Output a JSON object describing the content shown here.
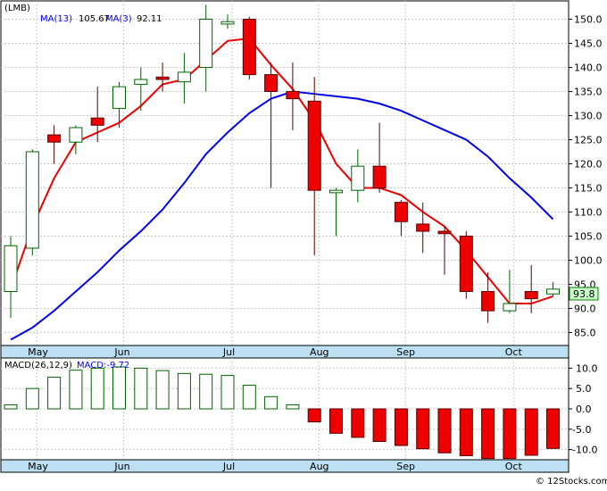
{
  "chart_data": [
    {
      "type": "candlestick",
      "symbol": "(LMB)",
      "legend": {
        "ma13_label": "MA(13)",
        "ma13_value": "105.67",
        "ma3_label": "MA(3)",
        "ma3_value": "92.11"
      },
      "last_price_label": "93.8",
      "y_ticks": [
        85.0,
        90.0,
        95.0,
        100.0,
        105.0,
        110.0,
        115.0,
        120.0,
        125.0,
        130.0,
        135.0,
        140.0,
        145.0,
        150.0
      ],
      "ylim": [
        82.3,
        153.8
      ],
      "months": [
        {
          "label": "May",
          "index": 1.2
        },
        {
          "label": "Jun",
          "index": 5.2
        },
        {
          "label": "Jul",
          "index": 10.2
        },
        {
          "label": "Aug",
          "index": 14.2
        },
        {
          "label": "Sep",
          "index": 18.2
        },
        {
          "label": "Oct",
          "index": 23.2
        }
      ],
      "candles": [
        {
          "open": 93.5,
          "high": 105.0,
          "low": 88.0,
          "close": 103.0
        },
        {
          "open": 102.5,
          "high": 123.0,
          "low": 101.0,
          "close": 122.5
        },
        {
          "open": 126.0,
          "high": 128.0,
          "low": 120.0,
          "close": 124.5
        },
        {
          "open": 124.5,
          "high": 128.0,
          "low": 122.0,
          "close": 127.5
        },
        {
          "open": 129.5,
          "high": 136.0,
          "low": 124.5,
          "close": 128.0
        },
        {
          "open": 131.5,
          "high": 137.0,
          "low": 127.5,
          "close": 136.0
        },
        {
          "open": 136.5,
          "high": 140.0,
          "low": 131.0,
          "close": 137.5
        },
        {
          "open": 138.0,
          "high": 141.0,
          "low": 135.0,
          "close": 137.5
        },
        {
          "open": 137.0,
          "high": 143.0,
          "low": 132.5,
          "close": 139.0
        },
        {
          "open": 140.0,
          "high": 153.0,
          "low": 135.0,
          "close": 150.0
        },
        {
          "open": 149.0,
          "high": 151.0,
          "low": 148.0,
          "close": 149.5
        },
        {
          "open": 150.0,
          "high": 150.5,
          "low": 137.5,
          "close": 138.5
        },
        {
          "open": 138.5,
          "high": 141.0,
          "low": 115.0,
          "close": 135.0
        },
        {
          "open": 135.0,
          "high": 141.0,
          "low": 127.0,
          "close": 133.5
        },
        {
          "open": 133.0,
          "high": 138.0,
          "low": 101.0,
          "close": 114.5
        },
        {
          "open": 114.0,
          "high": 115.0,
          "low": 105.0,
          "close": 114.5
        },
        {
          "open": 114.5,
          "high": 123.0,
          "low": 112.0,
          "close": 119.5
        },
        {
          "open": 119.5,
          "high": 128.5,
          "low": 114.0,
          "close": 115.0
        },
        {
          "open": 112.0,
          "high": 112.5,
          "low": 105.0,
          "close": 108.0
        },
        {
          "open": 107.5,
          "high": 112.0,
          "low": 101.5,
          "close": 106.0
        },
        {
          "open": 106.0,
          "high": 107.0,
          "low": 97.0,
          "close": 105.5
        },
        {
          "open": 105.0,
          "high": 106.0,
          "low": 92.0,
          "close": 93.5
        },
        {
          "open": 93.5,
          "high": 97.5,
          "low": 87.0,
          "close": 89.5
        },
        {
          "open": 89.5,
          "high": 98.0,
          "low": 89.0,
          "close": 91.0
        },
        {
          "open": 93.5,
          "high": 99.0,
          "low": 89.0,
          "close": 92.0
        },
        {
          "open": 93.0,
          "high": 95.5,
          "low": 92.5,
          "close": 94.0
        }
      ],
      "ma13": [
        83.5,
        84.8,
        86.5,
        89.0,
        91.8,
        94.8,
        97.6,
        100.6,
        103.3,
        106.4,
        109.7,
        113.1,
        116.5,
        119.8,
        122.2,
        124.5,
        126.5,
        128.4,
        129.9,
        131.3,
        132.5,
        133.2,
        133.9,
        134.3,
        134.5,
        134.8,
        134.5,
        134.0,
        133.5,
        132.8,
        132.0,
        131.0,
        129.8,
        128.2,
        126.5,
        124.5,
        121.8,
        118.8,
        115.5,
        112.5,
        110.0,
        107.8,
        105.67
      ],
      "ma13_x": [
        0,
        1,
        2,
        3,
        4,
        5,
        6,
        7,
        8,
        9,
        10,
        11,
        12,
        13,
        14,
        15,
        16,
        17,
        18,
        19,
        20,
        21,
        22,
        23,
        24,
        25
      ],
      "ma13_series": [
        83.5,
        86.0,
        89.5,
        93.5,
        97.5,
        102.0,
        106.0,
        110.5,
        116.0,
        122.0,
        126.5,
        130.5,
        133.5,
        135.0,
        134.5,
        134.0,
        133.5,
        132.5,
        131.0,
        129.0,
        127.0,
        125.0,
        121.5,
        117.0,
        113.0,
        108.5
      ],
      "ma3_series": [
        94.0,
        107.0,
        117.0,
        124.5,
        126.5,
        128.5,
        132.0,
        136.5,
        137.5,
        141.5,
        145.5,
        146.0,
        140.5,
        135.5,
        129.0,
        120.0,
        115.0,
        115.0,
        113.5,
        110.0,
        107.0,
        102.0,
        96.5,
        91.0,
        91.0,
        92.5
      ],
      "macd": {
        "label": "MACD(26,12,9)",
        "value_label": "MACD:-9.72",
        "y_ticks": [
          10.0,
          5.0,
          0.0,
          -5.0,
          -10.0
        ],
        "ylim": [
          -12.5,
          12.5
        ],
        "values": [
          1.0,
          5.0,
          7.8,
          9.5,
          10.0,
          10.3,
          10.0,
          9.4,
          8.7,
          8.5,
          8.2,
          5.8,
          3.0,
          1.0,
          -3.2,
          -6.0,
          -7.0,
          -8.0,
          -9.0,
          -9.8,
          -10.8,
          -11.5,
          -12.2,
          -12.2,
          -11.4,
          -9.72
        ]
      },
      "footer": "© 12Stocks.com"
    }
  ]
}
